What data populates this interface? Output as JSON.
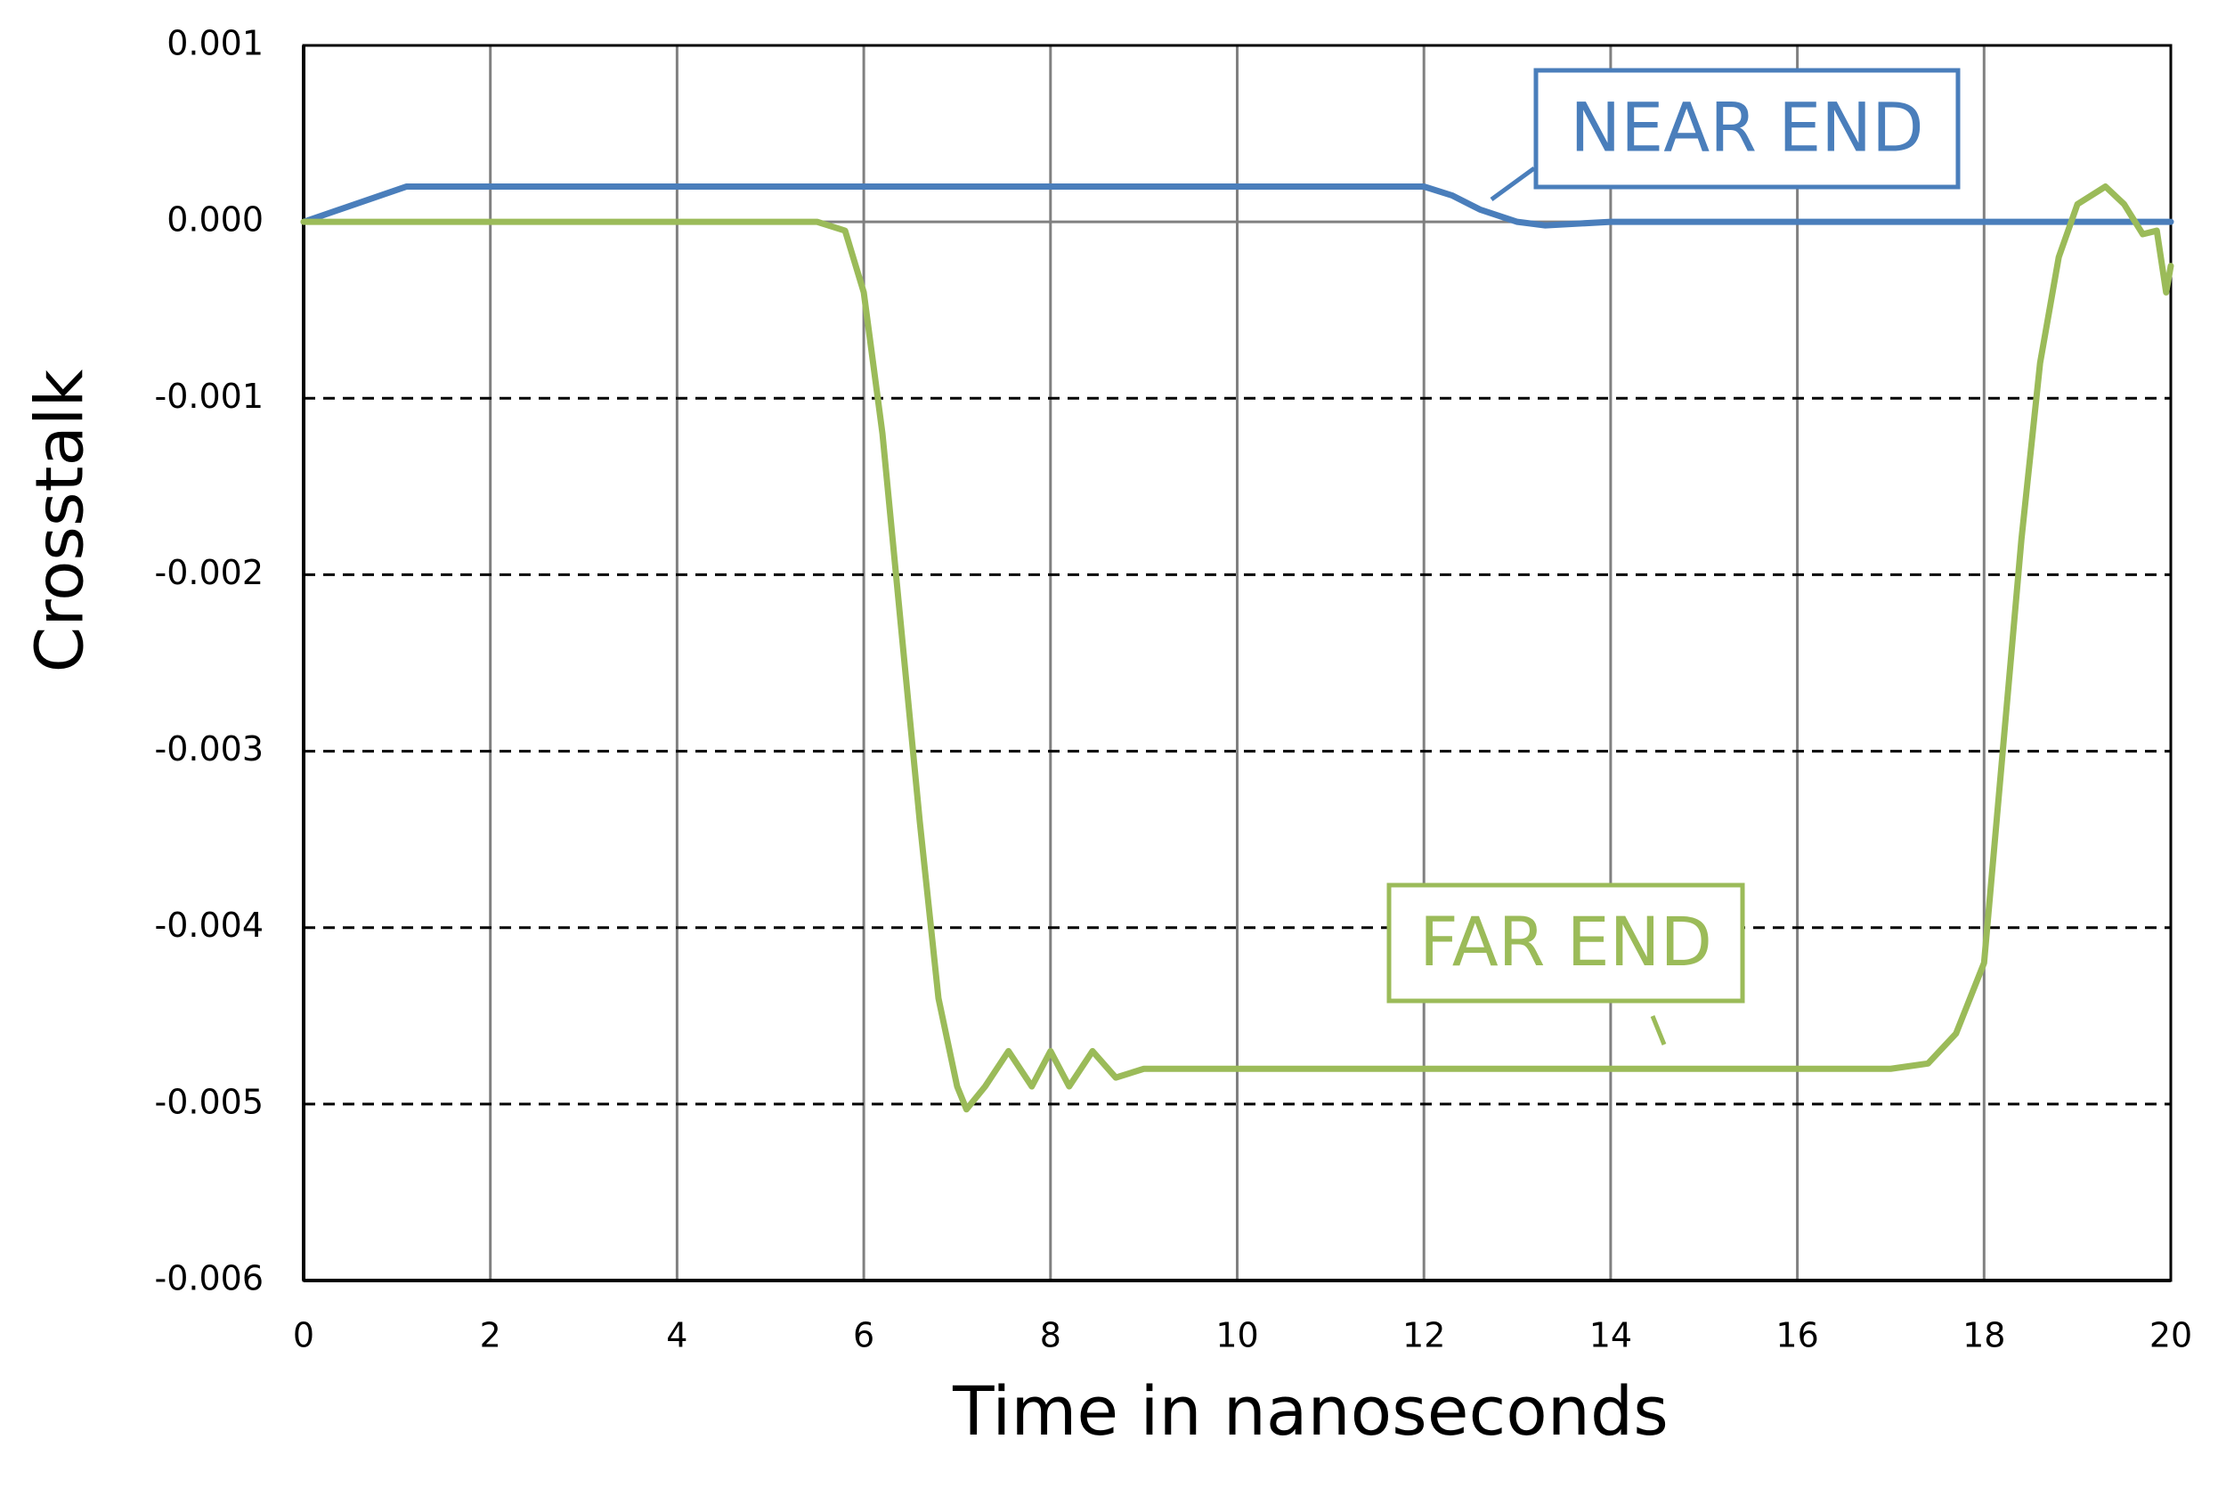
{
  "chart_data": {
    "type": "line",
    "x_label": "Time in nanoseconds",
    "y_label": "Crosstalk",
    "xlim": [
      0,
      20
    ],
    "xticks": [
      0,
      2,
      4,
      6,
      8,
      10,
      12,
      14,
      16,
      18,
      20
    ],
    "ylim": [
      -0.006,
      0.001
    ],
    "yticks": [
      0.001,
      {
        "value": 0,
        "label": "0.000"
      },
      -0.001,
      -0.002,
      -0.003,
      -0.004,
      -0.005,
      -0.006
    ],
    "grid": true,
    "series": [
      {
        "name": "NEAR END",
        "color": "#4a7ebb",
        "x": [
          0,
          1.1,
          12,
          12.3,
          12.6,
          13,
          13.3,
          14,
          20
        ],
        "values": [
          0,
          0.0002,
          0.0002,
          0.00015,
          7e-05,
          0,
          -2e-05,
          0,
          0
        ]
      },
      {
        "name": "FAR END",
        "color": "#9bbb59",
        "x": [
          0,
          5.5,
          5.8,
          6,
          6.2,
          6.4,
          6.6,
          6.8,
          7,
          7.1,
          7.3,
          7.55,
          7.8,
          8,
          8.2,
          8.45,
          8.7,
          9,
          10,
          17,
          17.4,
          17.7,
          18,
          18.2,
          18.4,
          18.6,
          18.8,
          19,
          19.3,
          19.5,
          19.7,
          19.85,
          19.95,
          20
        ],
        "values": [
          0,
          0,
          -5e-05,
          -0.0004,
          -0.0012,
          -0.0023,
          -0.0034,
          -0.0044,
          -0.0049,
          -0.00503,
          -0.0049,
          -0.0047,
          -0.0049,
          -0.0047,
          -0.0049,
          -0.0047,
          -0.00485,
          -0.0048,
          -0.0048,
          -0.0048,
          -0.00477,
          -0.0046,
          -0.0042,
          -0.003,
          -0.0018,
          -0.0008,
          -0.0002,
          0.0001,
          0.0002,
          0.0001,
          -7e-05,
          -5e-05,
          -0.0004,
          -0.00025
        ]
      }
    ]
  }
}
